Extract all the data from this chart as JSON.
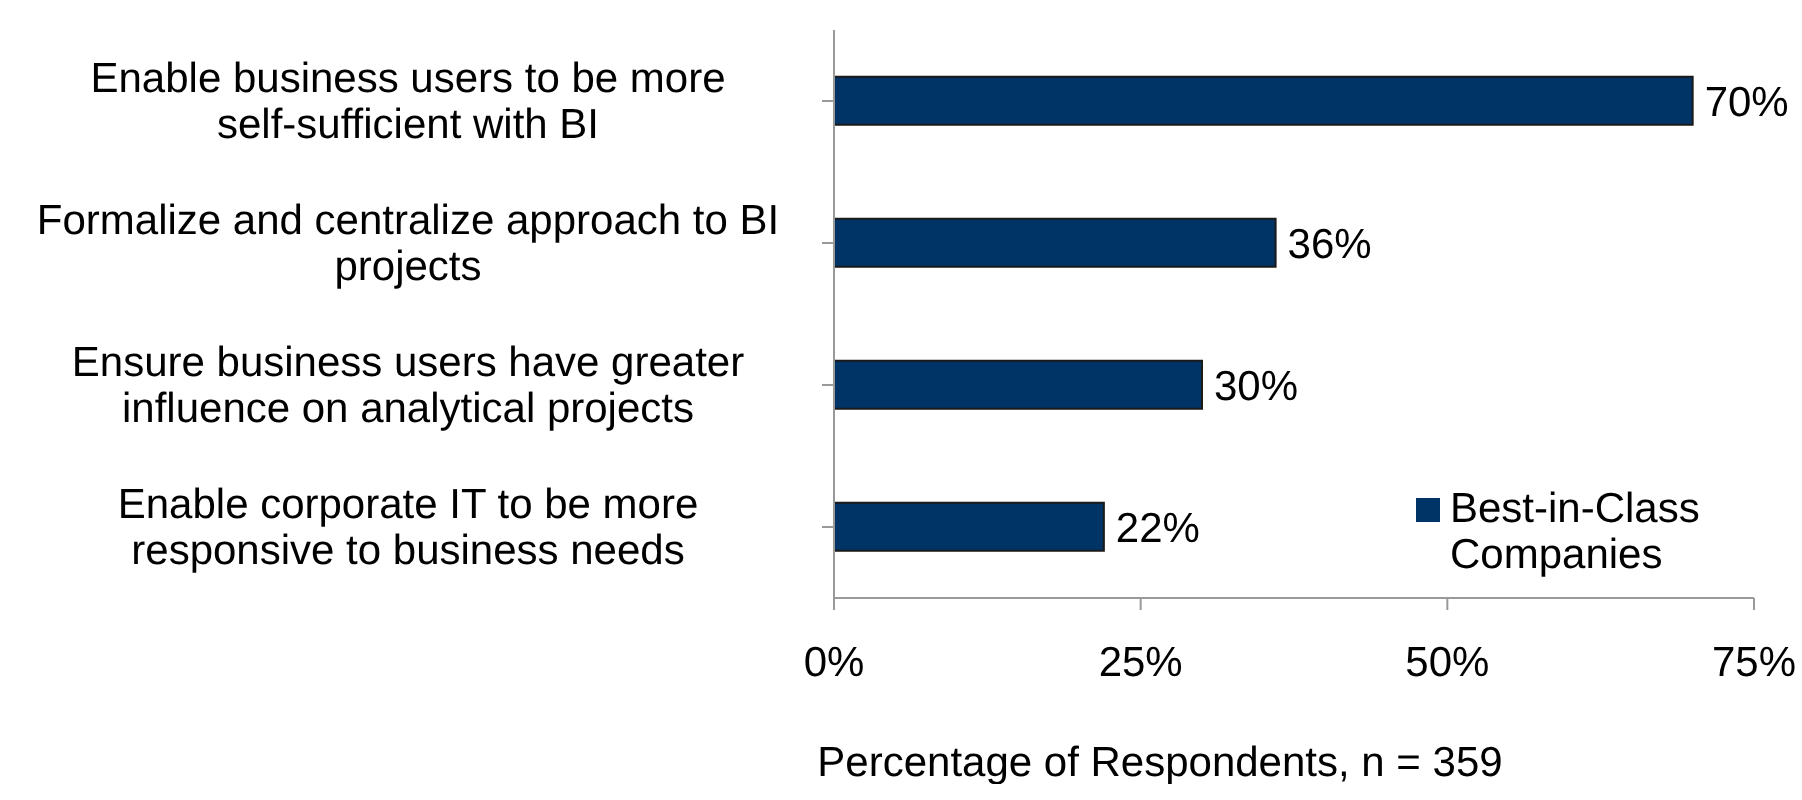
{
  "chart_data": {
    "type": "bar",
    "orientation": "horizontal",
    "xlabel": "Percentage of Respondents, n = 359",
    "categories": [
      "Enable business users to be more self-sufficient with BI",
      "Formalize and centralize approach to BI projects",
      "Ensure business users have greater influence on analytical projects",
      "Enable corporate IT to be more responsive to business needs"
    ],
    "series": [
      {
        "name": "Best-in-Class Companies",
        "color": "#003366",
        "values": [
          70,
          36,
          30,
          22
        ],
        "value_labels": [
          "70%",
          "36%",
          "30%",
          "22%"
        ]
      }
    ],
    "xlim": [
      0,
      75
    ],
    "xticks": [
      {
        "value": 0,
        "label": "0%"
      },
      {
        "value": 25,
        "label": "25%"
      },
      {
        "value": 50,
        "label": "50%"
      },
      {
        "value": 75,
        "label": "75%"
      }
    ],
    "grid": false,
    "legend": "bottom right"
  }
}
